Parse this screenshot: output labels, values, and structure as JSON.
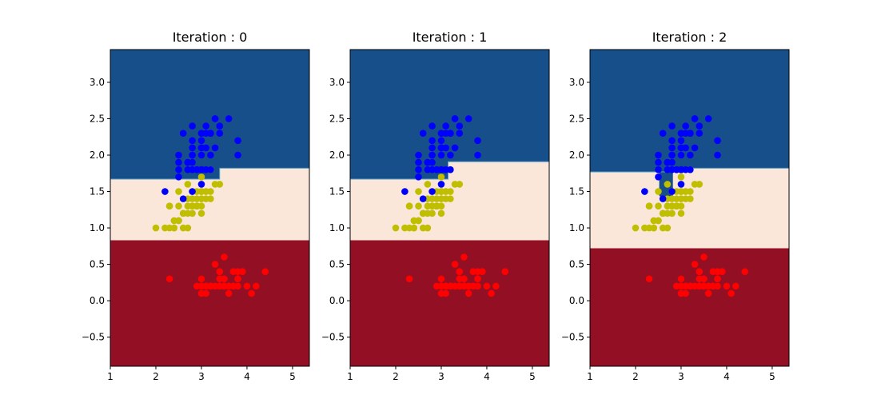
{
  "chart_data": [
    {
      "type": "scatter",
      "title": "Iteration  : 0",
      "xlim": [
        1.0,
        5.37
      ],
      "ylim": [
        -0.9,
        3.45
      ],
      "xticks": [
        1,
        2,
        3,
        4,
        5
      ],
      "yticks": [
        -0.5,
        0.0,
        0.5,
        1.0,
        1.5,
        2.0,
        2.5,
        3.0
      ],
      "ytick_labels": [
        "−0.5",
        "0.0",
        "0.5",
        "1.0",
        "1.5",
        "2.0",
        "2.5",
        "3.0"
      ],
      "grid": false,
      "regions": [
        {
          "class": "red",
          "color": "#930f24",
          "y_from": -0.9,
          "y_to": 0.83
        },
        {
          "class": "cream",
          "color": "#fbe6da",
          "y_from": 0.83,
          "y_to_left": 1.67,
          "y_to_right": 1.82,
          "step_x": 3.4
        },
        {
          "class": "blue",
          "color": "#174f8a",
          "y_from_left": 1.67,
          "y_from_right": 1.82,
          "step_x": 3.4,
          "y_to": 3.45
        }
      ]
    },
    {
      "type": "scatter",
      "title": "Iteration  : 1",
      "xlim": [
        1.0,
        5.37
      ],
      "ylim": [
        -0.9,
        3.45
      ],
      "xticks": [
        1,
        2,
        3,
        4,
        5
      ],
      "yticks": [
        -0.5,
        0.0,
        0.5,
        1.0,
        1.5,
        2.0,
        2.5,
        3.0
      ],
      "ytick_labels": [
        "−0.5",
        "0.0",
        "0.5",
        "1.0",
        "1.5",
        "2.0",
        "2.5",
        "3.0"
      ],
      "grid": false,
      "regions": [
        {
          "class": "red",
          "color": "#930f24",
          "y_from": -0.9,
          "y_to": 0.83
        },
        {
          "class": "cream",
          "color": "#fbe6da",
          "y_from": 0.83,
          "y_to_left": 1.67,
          "y_to_right": 1.91,
          "step_x": 3.15
        },
        {
          "class": "blue",
          "color": "#174f8a",
          "y_from_left": 1.67,
          "y_from_right": 1.91,
          "step_x": 3.15,
          "y_to": 3.45
        }
      ]
    },
    {
      "type": "scatter",
      "title": "Iteration  : 2",
      "xlim": [
        1.0,
        5.37
      ],
      "ylim": [
        -0.9,
        3.45
      ],
      "xticks": [
        1,
        2,
        3,
        4,
        5
      ],
      "yticks": [
        -0.5,
        0.0,
        0.5,
        1.0,
        1.5,
        2.0,
        2.5,
        3.0
      ],
      "ytick_labels": [
        "−0.5",
        "0.0",
        "0.5",
        "1.0",
        "1.5",
        "2.0",
        "2.5",
        "3.0"
      ],
      "grid": false,
      "regions": [
        {
          "class": "red",
          "color": "#930f24",
          "y_from": -0.9,
          "y_to": 0.72
        },
        {
          "class": "cream",
          "color": "#fbe6da",
          "y_from": 0.72,
          "y_to_left": 1.77,
          "y_to_right": 1.82,
          "step_x": 2.9
        },
        {
          "class": "blue",
          "color": "#174f8a",
          "y_from_left": 1.77,
          "y_from_right": 1.82,
          "step_x": 2.9,
          "y_to": 3.45,
          "notch": {
            "x_from": 2.52,
            "x_to": 2.82,
            "y_from": 1.43
          }
        }
      ]
    }
  ],
  "shared_points": {
    "series": [
      {
        "class": "setosa",
        "color": "#ff0000",
        "points": [
          [
            3.5,
            0.2
          ],
          [
            3.0,
            0.2
          ],
          [
            3.2,
            0.2
          ],
          [
            3.1,
            0.2
          ],
          [
            3.6,
            0.2
          ],
          [
            3.9,
            0.4
          ],
          [
            3.4,
            0.3
          ],
          [
            3.4,
            0.2
          ],
          [
            2.9,
            0.2
          ],
          [
            3.1,
            0.1
          ],
          [
            3.7,
            0.2
          ],
          [
            3.4,
            0.2
          ],
          [
            3.0,
            0.1
          ],
          [
            3.0,
            0.1
          ],
          [
            4.0,
            0.2
          ],
          [
            4.4,
            0.4
          ],
          [
            3.9,
            0.4
          ],
          [
            3.5,
            0.3
          ],
          [
            3.8,
            0.3
          ],
          [
            3.8,
            0.3
          ],
          [
            3.4,
            0.2
          ],
          [
            3.7,
            0.4
          ],
          [
            3.6,
            0.2
          ],
          [
            3.3,
            0.5
          ],
          [
            3.4,
            0.2
          ],
          [
            3.0,
            0.2
          ],
          [
            3.4,
            0.4
          ],
          [
            3.5,
            0.2
          ],
          [
            3.4,
            0.2
          ],
          [
            3.2,
            0.2
          ],
          [
            3.1,
            0.2
          ],
          [
            3.4,
            0.4
          ],
          [
            4.1,
            0.1
          ],
          [
            4.2,
            0.2
          ],
          [
            3.1,
            0.2
          ],
          [
            3.2,
            0.2
          ],
          [
            3.5,
            0.2
          ],
          [
            3.6,
            0.1
          ],
          [
            3.0,
            0.2
          ],
          [
            3.4,
            0.2
          ],
          [
            3.5,
            0.3
          ],
          [
            2.3,
            0.3
          ],
          [
            3.2,
            0.2
          ],
          [
            3.5,
            0.6
          ],
          [
            3.8,
            0.4
          ],
          [
            3.0,
            0.3
          ],
          [
            3.8,
            0.2
          ],
          [
            3.2,
            0.2
          ],
          [
            3.7,
            0.2
          ],
          [
            3.3,
            0.2
          ]
        ]
      },
      {
        "class": "versicolor",
        "color": "#bfbf00",
        "points": [
          [
            3.2,
            1.4
          ],
          [
            3.2,
            1.5
          ],
          [
            3.1,
            1.5
          ],
          [
            2.3,
            1.3
          ],
          [
            2.8,
            1.5
          ],
          [
            2.8,
            1.3
          ],
          [
            3.3,
            1.6
          ],
          [
            2.4,
            1.0
          ],
          [
            2.9,
            1.3
          ],
          [
            2.7,
            1.4
          ],
          [
            2.0,
            1.0
          ],
          [
            3.0,
            1.5
          ],
          [
            2.2,
            1.0
          ],
          [
            2.9,
            1.4
          ],
          [
            2.9,
            1.3
          ],
          [
            3.1,
            1.4
          ],
          [
            3.0,
            1.5
          ],
          [
            2.7,
            1.0
          ],
          [
            2.2,
            1.5
          ],
          [
            2.5,
            1.1
          ],
          [
            3.2,
            1.8
          ],
          [
            2.8,
            1.3
          ],
          [
            2.5,
            1.5
          ],
          [
            2.8,
            1.2
          ],
          [
            2.9,
            1.3
          ],
          [
            3.0,
            1.4
          ],
          [
            2.8,
            1.4
          ],
          [
            3.0,
            1.7
          ],
          [
            2.9,
            1.5
          ],
          [
            2.6,
            1.0
          ],
          [
            2.4,
            1.1
          ],
          [
            2.4,
            1.0
          ],
          [
            2.7,
            1.2
          ],
          [
            2.7,
            1.6
          ],
          [
            3.0,
            1.5
          ],
          [
            3.4,
            1.6
          ],
          [
            3.1,
            1.5
          ],
          [
            2.3,
            1.3
          ],
          [
            3.0,
            1.3
          ],
          [
            2.5,
            1.3
          ],
          [
            2.6,
            1.2
          ],
          [
            3.0,
            1.4
          ],
          [
            2.6,
            1.2
          ],
          [
            2.3,
            1.0
          ],
          [
            2.7,
            1.3
          ],
          [
            3.0,
            1.2
          ],
          [
            2.9,
            1.3
          ],
          [
            2.9,
            1.3
          ],
          [
            2.5,
            1.1
          ],
          [
            2.8,
            1.3
          ]
        ]
      },
      {
        "class": "virginica",
        "color": "#0000ff",
        "points": [
          [
            3.3,
            2.5
          ],
          [
            2.7,
            1.9
          ],
          [
            3.0,
            2.1
          ],
          [
            2.9,
            1.8
          ],
          [
            3.0,
            2.2
          ],
          [
            3.0,
            2.1
          ],
          [
            2.5,
            1.7
          ],
          [
            2.9,
            1.8
          ],
          [
            2.5,
            1.8
          ],
          [
            3.6,
            2.5
          ],
          [
            3.2,
            2.0
          ],
          [
            2.7,
            1.9
          ],
          [
            3.0,
            2.1
          ],
          [
            2.5,
            2.0
          ],
          [
            2.8,
            2.4
          ],
          [
            3.2,
            2.3
          ],
          [
            3.0,
            1.8
          ],
          [
            3.8,
            2.2
          ],
          [
            2.6,
            2.3
          ],
          [
            2.2,
            1.5
          ],
          [
            3.2,
            2.3
          ],
          [
            2.8,
            2.0
          ],
          [
            2.8,
            2.0
          ],
          [
            2.7,
            1.8
          ],
          [
            3.3,
            2.1
          ],
          [
            3.2,
            1.8
          ],
          [
            2.8,
            1.8
          ],
          [
            3.0,
            1.8
          ],
          [
            2.8,
            2.1
          ],
          [
            3.0,
            1.6
          ],
          [
            2.8,
            1.9
          ],
          [
            3.8,
            2.0
          ],
          [
            2.8,
            2.2
          ],
          [
            2.8,
            1.5
          ],
          [
            2.6,
            1.4
          ],
          [
            3.0,
            2.3
          ],
          [
            3.4,
            2.4
          ],
          [
            3.1,
            1.8
          ],
          [
            3.0,
            1.8
          ],
          [
            3.1,
            2.1
          ],
          [
            3.1,
            2.4
          ],
          [
            3.1,
            2.3
          ],
          [
            2.7,
            1.9
          ],
          [
            3.2,
            2.3
          ],
          [
            3.3,
            2.5
          ],
          [
            3.0,
            2.3
          ],
          [
            2.5,
            1.9
          ],
          [
            3.0,
            2.0
          ],
          [
            3.4,
            2.3
          ],
          [
            3.0,
            1.8
          ]
        ]
      }
    ]
  }
}
